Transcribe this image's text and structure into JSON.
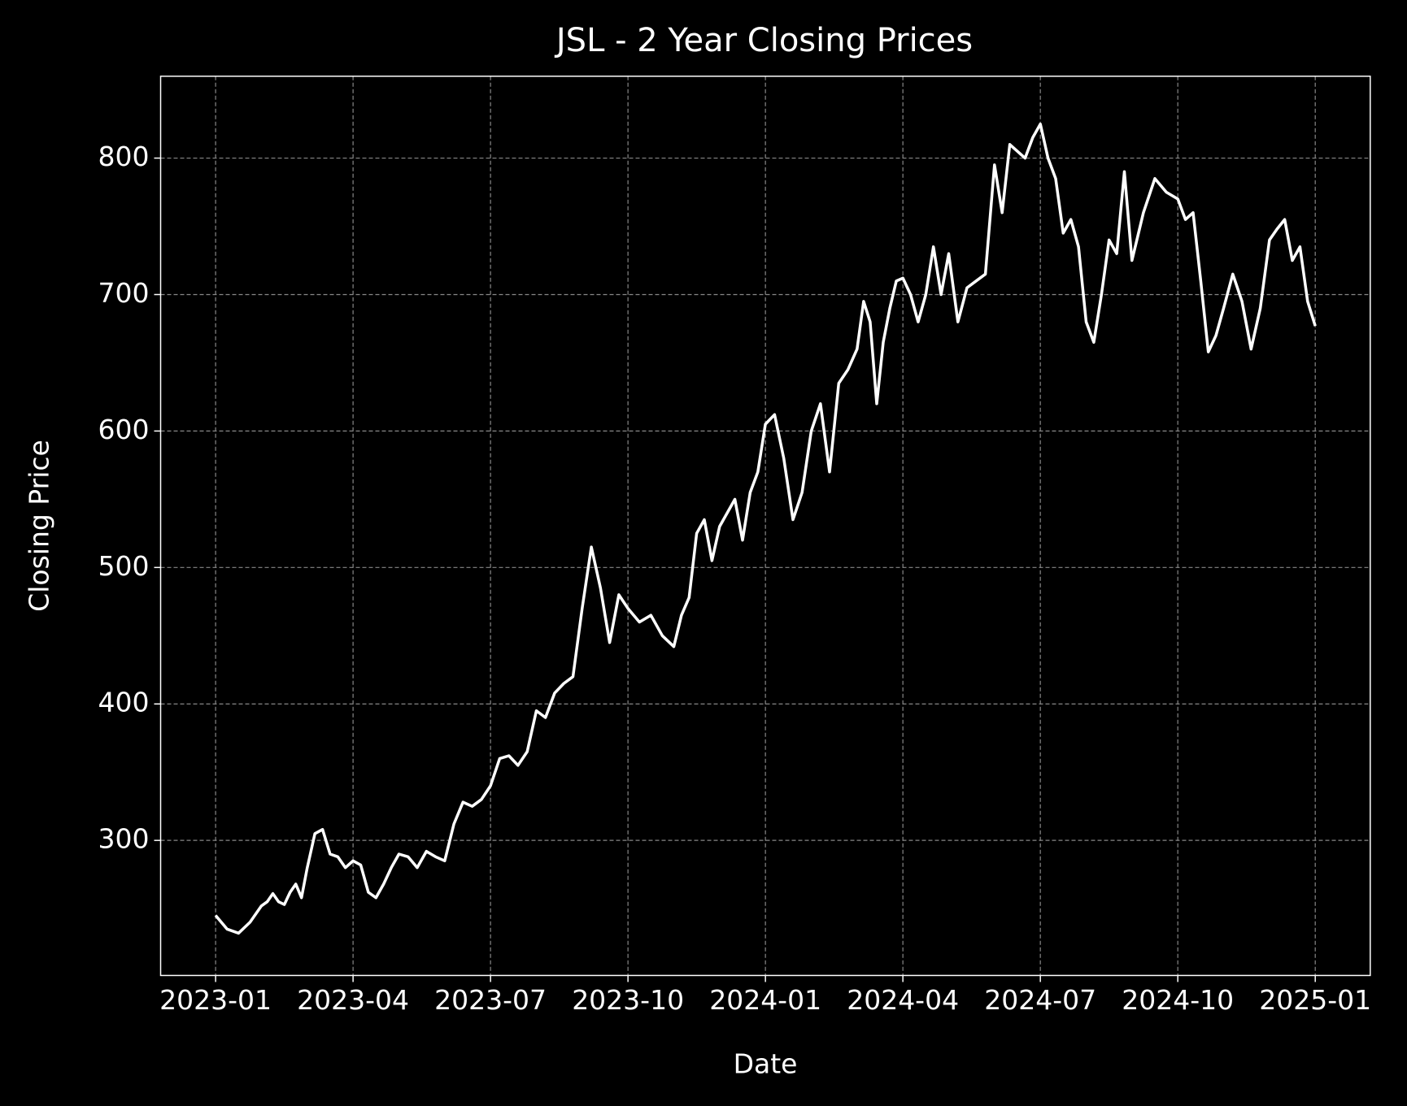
{
  "chart_data": {
    "type": "line",
    "title": "JSL - 2 Year Closing Prices",
    "xlabel": "Date",
    "ylabel": "Closing Price",
    "x": [
      "2023-01",
      "2023-01",
      "2023-01",
      "2023-01",
      "2023-02",
      "2023-02",
      "2023-02",
      "2023-02",
      "2023-02",
      "2023-02",
      "2023-02",
      "2023-02",
      "2023-03",
      "2023-03",
      "2023-03",
      "2023-03",
      "2023-03",
      "2023-03",
      "2023-04",
      "2023-04",
      "2023-04",
      "2023-04",
      "2023-04",
      "2023-04",
      "2023-05",
      "2023-05",
      "2023-05",
      "2023-05",
      "2023-05",
      "2023-06",
      "2023-06",
      "2023-06",
      "2023-06",
      "2023-06",
      "2023-07",
      "2023-07",
      "2023-07",
      "2023-07",
      "2023-07",
      "2023-08",
      "2023-08",
      "2023-08",
      "2023-08",
      "2023-08",
      "2023-09",
      "2023-09",
      "2023-09",
      "2023-09",
      "2023-09",
      "2023-10",
      "2023-10",
      "2023-10",
      "2023-10",
      "2023-11",
      "2023-11",
      "2023-11",
      "2023-11",
      "2023-11",
      "2023-11",
      "2023-12",
      "2023-12",
      "2023-12",
      "2023-12",
      "2023-12",
      "2023-12",
      "2024-01",
      "2024-01",
      "2024-01",
      "2024-01",
      "2024-01",
      "2024-02",
      "2024-02",
      "2024-02",
      "2024-02",
      "2024-02",
      "2024-03",
      "2024-03",
      "2024-03",
      "2024-03",
      "2024-03",
      "2024-03",
      "2024-03",
      "2024-04",
      "2024-04",
      "2024-04",
      "2024-04",
      "2024-04",
      "2024-04",
      "2024-05",
      "2024-05",
      "2024-05",
      "2024-05",
      "2024-05",
      "2024-06",
      "2024-06",
      "2024-06",
      "2024-06",
      "2024-06",
      "2024-06",
      "2024-07",
      "2024-07",
      "2024-07",
      "2024-07",
      "2024-07",
      "2024-07",
      "2024-08",
      "2024-08",
      "2024-08",
      "2024-08",
      "2024-08",
      "2024-08",
      "2024-09",
      "2024-09",
      "2024-09",
      "2024-09",
      "2024-10",
      "2024-10",
      "2024-10",
      "2024-10",
      "2024-10",
      "2024-10",
      "2024-11",
      "2024-11",
      "2024-11",
      "2024-11",
      "2024-11",
      "2024-12",
      "2024-12",
      "2024-12",
      "2024-12",
      "2024-12",
      "2024-12",
      "2025-01"
    ],
    "series": [
      {
        "name": "Closing Price",
        "color": "#ffffff",
        "values": [
          245,
          235,
          232,
          240,
          252,
          255,
          261,
          255,
          253,
          262,
          268,
          258,
          280,
          305,
          308,
          290,
          288,
          280,
          285,
          282,
          262,
          258,
          268,
          280,
          290,
          288,
          280,
          292,
          288,
          285,
          312,
          328,
          325,
          330,
          340,
          360,
          362,
          355,
          365,
          395,
          390,
          408,
          415,
          420,
          470,
          515,
          485,
          445,
          480,
          470,
          460,
          465,
          450,
          442,
          465,
          478,
          525,
          535,
          505,
          530,
          540,
          550,
          520,
          555,
          570,
          605,
          612,
          580,
          535,
          555,
          600,
          620,
          570,
          635,
          645,
          660,
          695,
          680,
          620,
          665,
          690,
          710,
          712,
          700,
          680,
          700,
          735,
          700,
          730,
          680,
          705,
          710,
          715,
          795,
          760,
          810,
          805,
          800,
          815,
          825,
          800,
          785,
          745,
          755,
          735,
          680,
          665,
          700,
          740,
          730,
          790,
          725,
          760,
          785,
          775,
          770,
          755,
          760,
          710,
          658,
          670,
          690,
          715,
          695,
          660,
          690,
          740,
          748,
          755,
          725,
          735,
          695,
          677
        ]
      }
    ],
    "xticks": [
      "2023-01",
      "2023-04",
      "2023-07",
      "2023-10",
      "2024-01",
      "2024-04",
      "2024-07",
      "2024-10",
      "2025-01"
    ],
    "ylim": [
      201,
      860
    ],
    "yticks": [
      300,
      400,
      500,
      600,
      700,
      800
    ],
    "grid": true
  }
}
